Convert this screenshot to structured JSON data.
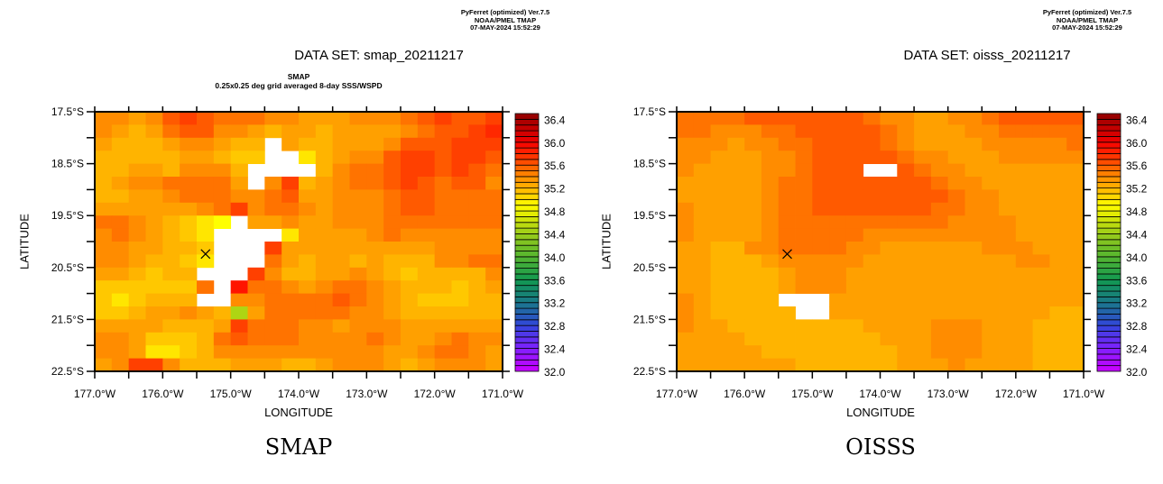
{
  "header": {
    "program": "PyFerret (optimized) Ver.7.5",
    "org": "NOAA/PMEL TMAP",
    "timestamp": "07-MAY-2024 15:52:29"
  },
  "chart_data": [
    {
      "type": "heatmap",
      "title": "DATA SET: smap_20211217",
      "subtitle_line1": "SMAP",
      "subtitle_line2": "0.25x0.25 deg grid averaged 8-day SSS/WSPD",
      "caption": "SMAP",
      "xlabel": "LONGITUDE",
      "ylabel": "LATITUDE",
      "xlim": [
        -177.0,
        -171.0
      ],
      "ylim": [
        -22.5,
        -17.5
      ],
      "x_tick_labels": [
        "177.0°W",
        "176.0°W",
        "175.0°W",
        "174.0°W",
        "173.0°W",
        "172.0°W",
        "171.0°W"
      ],
      "y_tick_labels": [
        "17.5°S",
        "18.5°S",
        "19.5°S",
        "20.5°S",
        "21.5°S",
        "22.5°S"
      ],
      "grid_resolution_deg": 0.25,
      "rows_order": "north-to-south",
      "marker": {
        "symbol": "x",
        "lon": -175.37,
        "lat": -20.24
      },
      "values": [
        [
          35.4,
          35.4,
          35.3,
          35.4,
          35.6,
          35.7,
          35.6,
          35.5,
          35.5,
          35.5,
          35.4,
          35.4,
          35.3,
          35.3,
          35.3,
          35.4,
          35.4,
          35.4,
          35.5,
          35.6,
          35.7,
          35.6,
          35.6,
          35.7
        ],
        [
          35.4,
          35.3,
          35.2,
          35.3,
          35.5,
          35.6,
          35.6,
          35.4,
          35.4,
          35.3,
          35.2,
          35.3,
          35.3,
          35.2,
          35.3,
          35.3,
          35.3,
          35.3,
          35.4,
          35.5,
          35.6,
          35.6,
          35.7,
          35.8
        ],
        [
          35.3,
          35.2,
          35.2,
          35.2,
          35.3,
          35.4,
          35.4,
          35.3,
          35.2,
          35.2,
          null,
          35.3,
          35.2,
          35.2,
          35.3,
          35.3,
          35.3,
          35.4,
          35.6,
          35.6,
          35.6,
          35.7,
          35.7,
          35.7
        ],
        [
          35.2,
          35.2,
          35.2,
          35.2,
          35.2,
          35.3,
          35.3,
          35.2,
          35.1,
          35.1,
          null,
          null,
          35.0,
          35.2,
          35.3,
          35.4,
          35.4,
          35.6,
          35.7,
          35.7,
          35.6,
          35.7,
          35.7,
          35.6
        ],
        [
          35.2,
          35.2,
          35.3,
          35.3,
          35.2,
          35.4,
          35.4,
          35.4,
          35.2,
          null,
          null,
          null,
          null,
          35.2,
          35.4,
          35.5,
          35.5,
          35.6,
          35.7,
          35.7,
          35.6,
          35.7,
          35.6,
          35.5
        ],
        [
          35.2,
          35.3,
          35.4,
          35.4,
          35.5,
          35.5,
          35.5,
          35.5,
          35.3,
          null,
          35.4,
          35.7,
          35.2,
          35.3,
          35.4,
          35.5,
          35.5,
          35.6,
          35.7,
          35.6,
          35.5,
          35.6,
          35.6,
          35.4
        ],
        [
          35.2,
          35.2,
          35.3,
          35.3,
          35.4,
          35.5,
          35.5,
          35.5,
          35.4,
          35.4,
          35.5,
          35.6,
          35.3,
          35.3,
          35.4,
          35.4,
          35.4,
          35.5,
          35.6,
          35.6,
          35.5,
          35.5,
          35.5,
          35.5
        ],
        [
          35.3,
          35.3,
          35.3,
          35.3,
          35.3,
          35.3,
          35.4,
          35.5,
          35.7,
          35.4,
          35.5,
          35.5,
          35.4,
          35.3,
          35.4,
          35.4,
          35.4,
          35.5,
          35.6,
          35.6,
          35.5,
          35.5,
          35.5,
          35.5
        ],
        [
          35.5,
          35.5,
          35.4,
          35.3,
          35.2,
          35.1,
          35.0,
          34.9,
          null,
          35.3,
          35.3,
          35.4,
          35.3,
          35.3,
          35.4,
          35.4,
          35.4,
          35.5,
          35.5,
          35.5,
          35.5,
          35.5,
          35.5,
          35.5
        ],
        [
          35.4,
          35.5,
          35.4,
          35.3,
          35.2,
          35.1,
          35.0,
          null,
          null,
          null,
          null,
          35.0,
          35.3,
          35.3,
          35.3,
          35.3,
          35.4,
          35.5,
          35.4,
          35.4,
          35.4,
          35.4,
          35.4,
          35.4
        ],
        [
          35.4,
          35.4,
          35.3,
          35.3,
          35.2,
          35.2,
          35.1,
          null,
          null,
          null,
          35.7,
          35.3,
          35.3,
          35.3,
          35.3,
          35.3,
          35.3,
          35.3,
          35.3,
          35.3,
          35.4,
          35.4,
          35.4,
          35.4
        ],
        [
          35.4,
          35.4,
          35.3,
          35.2,
          35.2,
          35.1,
          35.0,
          null,
          null,
          null,
          35.5,
          35.3,
          35.2,
          35.3,
          35.3,
          35.2,
          35.3,
          35.2,
          35.2,
          35.2,
          35.4,
          35.4,
          35.5,
          35.5
        ],
        [
          35.3,
          35.3,
          35.2,
          35.1,
          35.2,
          35.2,
          null,
          null,
          null,
          35.7,
          35.4,
          35.2,
          35.2,
          35.3,
          35.3,
          35.4,
          35.3,
          35.2,
          35.1,
          35.2,
          35.2,
          35.2,
          35.2,
          35.4
        ],
        [
          35.1,
          35.1,
          35.1,
          35.1,
          35.1,
          35.1,
          35.5,
          null,
          35.9,
          35.5,
          35.5,
          35.4,
          35.3,
          35.4,
          35.5,
          35.5,
          35.4,
          35.3,
          35.2,
          35.2,
          35.2,
          35.1,
          35.2,
          35.3
        ],
        [
          35.1,
          35.0,
          35.1,
          35.2,
          35.2,
          35.2,
          null,
          null,
          35.4,
          35.4,
          35.5,
          35.5,
          35.5,
          35.5,
          35.6,
          35.5,
          35.4,
          35.3,
          35.2,
          35.1,
          35.1,
          35.1,
          35.2,
          35.2
        ],
        [
          35.1,
          35.1,
          35.2,
          35.3,
          35.3,
          35.4,
          35.3,
          35.2,
          34.5,
          35.3,
          35.5,
          35.5,
          35.5,
          35.5,
          35.5,
          35.4,
          35.4,
          35.3,
          35.2,
          35.2,
          35.2,
          35.2,
          35.2,
          35.2
        ],
        [
          35.3,
          35.3,
          35.3,
          35.3,
          35.2,
          35.2,
          35.2,
          35.3,
          35.7,
          35.5,
          35.5,
          35.5,
          35.4,
          35.4,
          35.3,
          35.4,
          35.4,
          35.4,
          35.3,
          35.3,
          35.3,
          35.3,
          35.3,
          35.3
        ],
        [
          35.4,
          35.4,
          35.3,
          35.1,
          35.1,
          35.1,
          35.2,
          35.5,
          35.6,
          35.5,
          35.5,
          35.5,
          35.4,
          35.4,
          35.4,
          35.4,
          35.5,
          35.4,
          35.3,
          35.3,
          35.4,
          35.5,
          35.4,
          35.4
        ],
        [
          35.4,
          35.4,
          35.3,
          35.0,
          35.0,
          35.1,
          35.2,
          35.4,
          35.4,
          35.4,
          35.4,
          35.4,
          35.4,
          35.4,
          35.4,
          35.4,
          35.4,
          35.3,
          35.3,
          35.4,
          35.5,
          35.5,
          35.4,
          35.3
        ],
        [
          35.3,
          35.4,
          35.7,
          35.7,
          35.4,
          35.2,
          35.2,
          35.2,
          35.3,
          35.3,
          35.3,
          35.2,
          35.2,
          35.3,
          35.4,
          35.4,
          35.4,
          35.3,
          35.2,
          35.3,
          35.4,
          35.4,
          35.4,
          35.3
        ]
      ],
      "colorbar": {
        "min": 32.0,
        "max": 36.5,
        "step": 0.1,
        "labels": [
          "32.0",
          "32.4",
          "32.8",
          "33.2",
          "33.6",
          "34.0",
          "34.4",
          "34.8",
          "35.2",
          "35.6",
          "36.0",
          "36.4"
        ]
      }
    },
    {
      "type": "heatmap",
      "title": "DATA SET: oisss_20211217",
      "caption": "OISSS",
      "xlabel": "LONGITUDE",
      "ylabel": "LATITUDE",
      "xlim": [
        -177.0,
        -171.0
      ],
      "ylim": [
        -22.5,
        -17.5
      ],
      "x_tick_labels": [
        "177.0°W",
        "176.0°W",
        "175.0°W",
        "174.0°W",
        "173.0°W",
        "172.0°W",
        "171.0°W"
      ],
      "y_tick_labels": [
        "17.5°S",
        "18.5°S",
        "19.5°S",
        "20.5°S",
        "21.5°S",
        "22.5°S"
      ],
      "grid_resolution_deg": 0.25,
      "rows_order": "north-to-south",
      "marker": {
        "symbol": "x",
        "lon": -175.37,
        "lat": -20.24
      },
      "values": [
        [
          35.5,
          35.5,
          35.5,
          35.5,
          35.6,
          35.6,
          35.6,
          35.6,
          35.6,
          35.6,
          35.6,
          35.5,
          35.4,
          35.4,
          35.3,
          35.3,
          35.4,
          35.4,
          35.5,
          35.6,
          35.6,
          35.6,
          35.6,
          35.6
        ],
        [
          35.5,
          35.5,
          35.4,
          35.4,
          35.4,
          35.5,
          35.5,
          35.6,
          35.6,
          35.6,
          35.6,
          35.6,
          35.5,
          35.4,
          35.3,
          35.3,
          35.3,
          35.4,
          35.4,
          35.5,
          35.5,
          35.5,
          35.5,
          35.5
        ],
        [
          35.4,
          35.4,
          35.4,
          35.3,
          35.4,
          35.4,
          35.5,
          35.5,
          35.6,
          35.6,
          35.6,
          35.6,
          35.5,
          35.4,
          35.3,
          35.3,
          35.3,
          35.3,
          35.4,
          35.4,
          35.4,
          35.4,
          35.4,
          35.5
        ],
        [
          35.4,
          35.4,
          35.3,
          35.3,
          35.3,
          35.4,
          35.4,
          35.5,
          35.6,
          35.6,
          35.6,
          35.6,
          35.6,
          35.5,
          35.4,
          35.4,
          35.3,
          35.3,
          35.3,
          35.4,
          35.4,
          35.4,
          35.4,
          35.4
        ],
        [
          35.4,
          35.3,
          35.3,
          35.3,
          35.3,
          35.4,
          35.4,
          35.5,
          35.6,
          35.6,
          35.6,
          null,
          null,
          35.6,
          35.5,
          35.4,
          35.4,
          35.3,
          35.3,
          35.3,
          35.3,
          35.3,
          35.3,
          35.3
        ],
        [
          35.3,
          35.3,
          35.3,
          35.3,
          35.3,
          35.4,
          35.5,
          35.5,
          35.6,
          35.6,
          35.6,
          35.6,
          35.6,
          35.6,
          35.6,
          35.5,
          35.4,
          35.4,
          35.3,
          35.3,
          35.3,
          35.3,
          35.3,
          35.3
        ],
        [
          35.3,
          35.3,
          35.3,
          35.3,
          35.3,
          35.4,
          35.5,
          35.5,
          35.6,
          35.6,
          35.6,
          35.6,
          35.6,
          35.6,
          35.6,
          35.6,
          35.5,
          35.4,
          35.4,
          35.3,
          35.3,
          35.3,
          35.3,
          35.3
        ],
        [
          35.4,
          35.3,
          35.3,
          35.3,
          35.3,
          35.4,
          35.5,
          35.5,
          35.6,
          35.6,
          35.6,
          35.6,
          35.6,
          35.6,
          35.6,
          35.5,
          35.5,
          35.4,
          35.4,
          35.3,
          35.3,
          35.3,
          35.3,
          35.3
        ],
        [
          35.4,
          35.3,
          35.3,
          35.3,
          35.3,
          35.4,
          35.5,
          35.5,
          35.5,
          35.5,
          35.5,
          35.5,
          35.5,
          35.5,
          35.5,
          35.5,
          35.4,
          35.4,
          35.4,
          35.4,
          35.3,
          35.3,
          35.3,
          35.3
        ],
        [
          35.4,
          35.3,
          35.3,
          35.3,
          35.3,
          35.4,
          35.5,
          35.5,
          35.5,
          35.5,
          35.5,
          35.4,
          35.4,
          35.4,
          35.4,
          35.4,
          35.4,
          35.4,
          35.4,
          35.4,
          35.3,
          35.3,
          35.3,
          35.3
        ],
        [
          35.3,
          35.3,
          35.2,
          35.2,
          35.4,
          35.4,
          35.5,
          35.5,
          35.5,
          35.5,
          35.4,
          35.4,
          35.3,
          35.3,
          35.3,
          35.3,
          35.3,
          35.3,
          35.4,
          35.4,
          35.4,
          35.3,
          35.3,
          35.3
        ],
        [
          35.3,
          35.3,
          35.2,
          35.2,
          35.2,
          35.3,
          35.4,
          35.4,
          35.4,
          35.4,
          35.4,
          35.3,
          35.3,
          35.3,
          35.3,
          35.3,
          35.3,
          35.3,
          35.3,
          35.3,
          35.4,
          35.4,
          35.3,
          35.3
        ],
        [
          35.3,
          35.3,
          35.2,
          35.2,
          35.2,
          35.2,
          35.3,
          35.4,
          35.4,
          35.4,
          35.3,
          35.3,
          35.3,
          35.3,
          35.3,
          35.3,
          35.3,
          35.3,
          35.3,
          35.3,
          35.3,
          35.3,
          35.3,
          35.3
        ],
        [
          35.3,
          35.3,
          35.2,
          35.2,
          35.2,
          35.2,
          35.3,
          35.4,
          35.4,
          35.4,
          35.3,
          35.3,
          35.3,
          35.3,
          35.3,
          35.3,
          35.3,
          35.3,
          35.3,
          35.3,
          35.3,
          35.3,
          35.3,
          35.3
        ],
        [
          35.4,
          35.3,
          35.2,
          35.2,
          35.2,
          35.2,
          null,
          null,
          null,
          35.3,
          35.3,
          35.3,
          35.3,
          35.3,
          35.3,
          35.3,
          35.3,
          35.3,
          35.3,
          35.3,
          35.3,
          35.3,
          35.3,
          35.3
        ],
        [
          35.4,
          35.3,
          35.2,
          35.2,
          35.2,
          35.2,
          35.2,
          null,
          null,
          35.3,
          35.3,
          35.3,
          35.3,
          35.3,
          35.3,
          35.3,
          35.3,
          35.3,
          35.3,
          35.3,
          35.3,
          35.3,
          35.2,
          35.2
        ],
        [
          35.4,
          35.3,
          35.3,
          35.2,
          35.2,
          35.2,
          35.2,
          35.2,
          35.2,
          35.2,
          35.2,
          35.3,
          35.3,
          35.3,
          35.3,
          35.4,
          35.4,
          35.4,
          35.3,
          35.3,
          35.3,
          35.2,
          35.2,
          35.2
        ],
        [
          35.3,
          35.3,
          35.3,
          35.3,
          35.2,
          35.2,
          35.2,
          35.2,
          35.2,
          35.2,
          35.2,
          35.2,
          35.3,
          35.3,
          35.3,
          35.4,
          35.4,
          35.4,
          35.3,
          35.3,
          35.3,
          35.2,
          35.2,
          35.2
        ],
        [
          35.3,
          35.3,
          35.3,
          35.3,
          35.3,
          35.2,
          35.2,
          35.2,
          35.2,
          35.2,
          35.2,
          35.2,
          35.2,
          35.3,
          35.3,
          35.4,
          35.4,
          35.4,
          35.3,
          35.3,
          35.3,
          35.2,
          35.2,
          35.2
        ],
        [
          35.3,
          35.3,
          35.3,
          35.3,
          35.3,
          35.3,
          35.3,
          35.2,
          35.2,
          35.2,
          35.2,
          35.2,
          35.2,
          35.3,
          35.3,
          35.3,
          35.4,
          35.3,
          35.3,
          35.3,
          35.3,
          35.2,
          35.2,
          35.2
        ]
      ],
      "colorbar": {
        "min": 32.0,
        "max": 36.5,
        "step": 0.1,
        "labels": [
          "32.0",
          "32.4",
          "32.8",
          "33.2",
          "33.6",
          "34.0",
          "34.4",
          "34.8",
          "35.2",
          "35.6",
          "36.0",
          "36.4"
        ]
      }
    }
  ]
}
